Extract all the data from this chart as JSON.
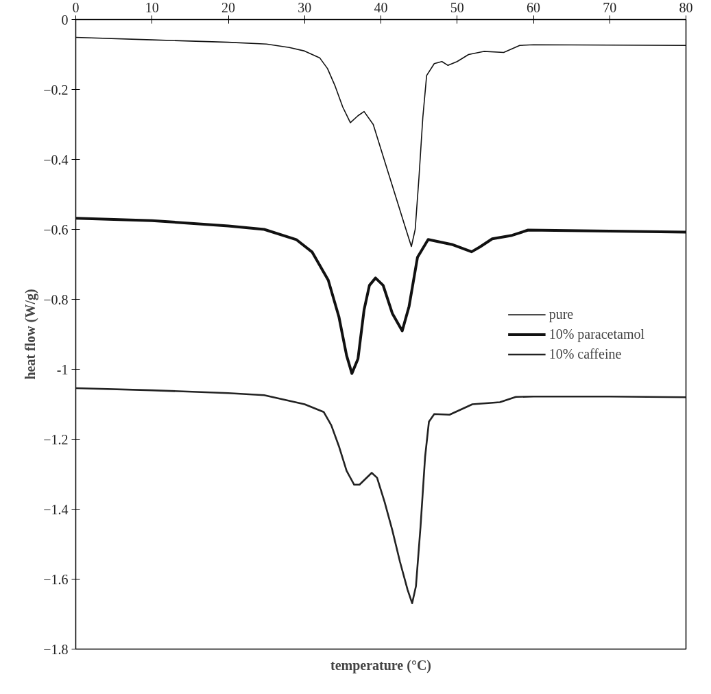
{
  "chart_data": {
    "type": "line",
    "xlabel": "temperature (°C)",
    "ylabel": "heat flow (W/g)",
    "xlim": [
      0,
      80
    ],
    "xticks": [
      0,
      10,
      20,
      30,
      40,
      50,
      60,
      70,
      80
    ],
    "ylim": [
      -1.8,
      0
    ],
    "yticks": [
      0,
      -0.2,
      -0.4,
      -0.6,
      -0.8,
      {
        "value": -1,
        "label": "-1"
      },
      -1.2,
      -1.4,
      -1.6,
      -1.8
    ],
    "grid": false,
    "legend": "right",
    "marker": "none",
    "line_style": "solid",
    "series": [
      {
        "name": "pure",
        "color": "#111111",
        "x": [
          0,
          10,
          20,
          25,
          28,
          30,
          32,
          33,
          34,
          35,
          36,
          37,
          37.8,
          39,
          40,
          41,
          42,
          43,
          44,
          44.5,
          45,
          45.5,
          46,
          47,
          48,
          48.8,
          50,
          51.5,
          53.5,
          56.1,
          58.2,
          60,
          70,
          80
        ],
        "values": [
          -0.051,
          -0.058,
          -0.065,
          -0.07,
          -0.08,
          -0.09,
          -0.11,
          -0.14,
          -0.19,
          -0.25,
          -0.295,
          -0.275,
          -0.263,
          -0.3,
          -0.37,
          -0.44,
          -0.51,
          -0.58,
          -0.649,
          -0.6,
          -0.45,
          -0.28,
          -0.16,
          -0.126,
          -0.12,
          -0.131,
          -0.12,
          -0.1,
          -0.091,
          -0.094,
          -0.074,
          -0.072,
          -0.073,
          -0.074
        ]
      },
      {
        "name": "10% paracetamol",
        "color": "#111111",
        "x": [
          0,
          10,
          20,
          24.7,
          28.9,
          31,
          33.1,
          34.5,
          35.5,
          36.2,
          37,
          37.8,
          38.5,
          39.3,
          40.3,
          41.5,
          42.8,
          43.7,
          44.8,
          46.2,
          49.3,
          51.9,
          53,
          54.6,
          57.2,
          59.3,
          70,
          80
        ],
        "values": [
          -0.568,
          -0.575,
          -0.59,
          -0.6,
          -0.629,
          -0.665,
          -0.745,
          -0.85,
          -0.96,
          -1.012,
          -0.97,
          -0.83,
          -0.76,
          -0.739,
          -0.76,
          -0.84,
          -0.89,
          -0.82,
          -0.68,
          -0.629,
          -0.643,
          -0.664,
          -0.65,
          -0.627,
          -0.617,
          -0.602,
          -0.605,
          -0.608
        ]
      },
      {
        "name": "10% caffeine",
        "color": "#222222",
        "x": [
          0,
          10,
          20,
          24.7,
          28,
          30,
          32.5,
          33.5,
          34.5,
          35.5,
          36.5,
          37.2,
          38.8,
          39.5,
          40.5,
          41.5,
          42.5,
          43.5,
          44.1,
          44.6,
          45.2,
          45.8,
          46.3,
          47,
          49,
          52,
          55.6,
          57.7,
          60,
          70,
          80
        ],
        "values": [
          -1.054,
          -1.06,
          -1.068,
          -1.074,
          -1.09,
          -1.1,
          -1.122,
          -1.16,
          -1.22,
          -1.29,
          -1.33,
          -1.33,
          -1.296,
          -1.31,
          -1.38,
          -1.46,
          -1.55,
          -1.63,
          -1.669,
          -1.62,
          -1.45,
          -1.25,
          -1.15,
          -1.128,
          -1.13,
          -1.1,
          -1.094,
          -1.079,
          -1.078,
          -1.078,
          -1.08
        ]
      }
    ]
  }
}
